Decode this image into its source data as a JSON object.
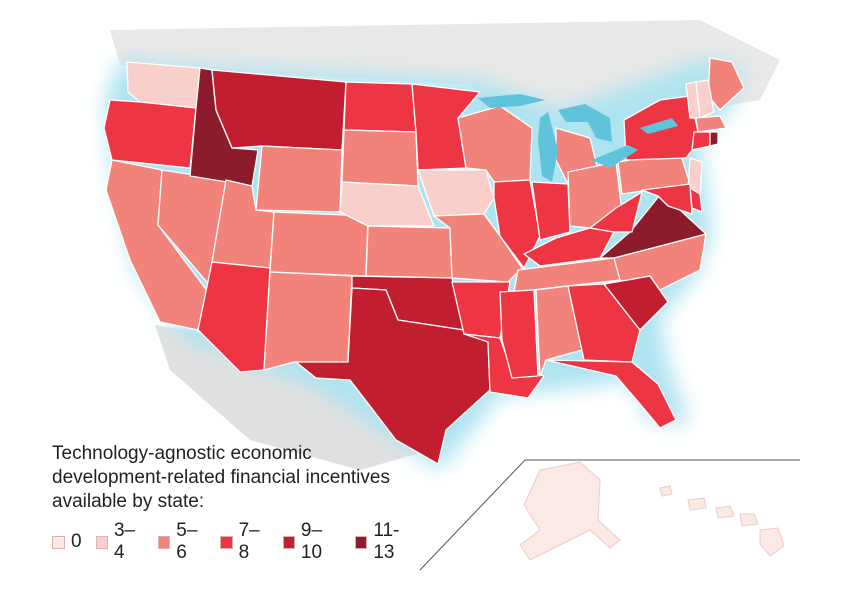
{
  "legend": {
    "title_lines": [
      "Technology-agnostic economic",
      "development-related financial incentives",
      "available by state:"
    ],
    "items": [
      {
        "label": "0",
        "color": "#fbe9e6"
      },
      {
        "label": "3–4",
        "color": "#f8cfcb"
      },
      {
        "label": "5–6",
        "color": "#f1837b"
      },
      {
        "label": "7–8",
        "color": "#ee3543"
      },
      {
        "label": "9–10",
        "color": "#c11e30"
      },
      {
        "label": "11-13",
        "color": "#8c1b2b"
      }
    ]
  },
  "colors": {
    "water_glow": "#aee3f0",
    "great_lakes": "#5fc3db",
    "canada_mexico": "#d9d9d9",
    "separator": "#555555"
  },
  "states": {
    "WA": 1,
    "OR": 3,
    "CA": 2,
    "NV": 2,
    "ID": 5,
    "MT": 4,
    "WY": 2,
    "UT": 2,
    "AZ": 3,
    "CO": 2,
    "NM": 2,
    "ND": 3,
    "SD": 2,
    "NE": 1,
    "KS": 2,
    "OK": 4,
    "TX": 4,
    "MN": 3,
    "IA": 1,
    "MO": 2,
    "AR": 3,
    "LA": 3,
    "WI": 2,
    "IL": 3,
    "MI": 2,
    "IN": 3,
    "OH": 2,
    "KY": 3,
    "TN": 2,
    "MS": 3,
    "AL": 2,
    "GA": 3,
    "FL": 3,
    "SC": 4,
    "NC": 2,
    "VA": 5,
    "WV": 3,
    "PA": 2,
    "NY": 3,
    "ME": 2,
    "VT": 1,
    "NH": 1,
    "MA": 2,
    "CT": 3,
    "RI": 5,
    "NJ": 1,
    "DE": 3,
    "MD": 3,
    "AK": 0,
    "HI": 0
  }
}
